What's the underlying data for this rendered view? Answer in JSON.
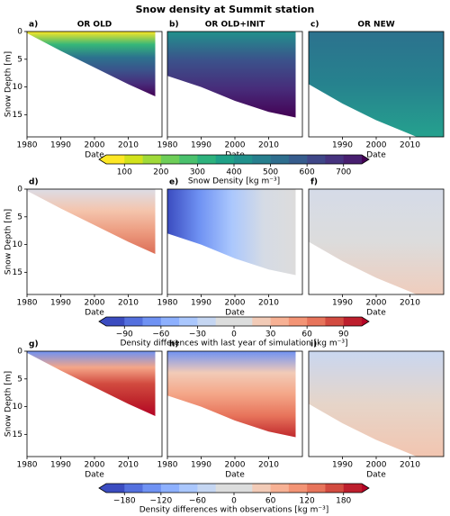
{
  "title": "Snow density at Summit station",
  "chart_data": [
    {
      "type": "contour",
      "label": "a)",
      "title": "OR OLD",
      "xlabel": "Date",
      "ylabel": "Snow Depth [m]",
      "xlim": [
        1980,
        2020
      ],
      "ylim": [
        19,
        0
      ],
      "xticks": [
        1980,
        1990,
        2000,
        2010
      ],
      "yticks": [
        0,
        5,
        10,
        15
      ],
      "x": [
        1980,
        1990,
        2000,
        2010,
        2018
      ],
      "depth": [
        0.3,
        3.5,
        6.5,
        9.5,
        11.7
      ],
      "gradient": "vertical",
      "colors": [
        "#fde725",
        "#35b779",
        "#2c728e",
        "#3b528b",
        "#472d7b",
        "#440154"
      ]
    },
    {
      "type": "contour",
      "label": "b)",
      "title": "OR OLD+INIT",
      "xlabel": "Date",
      "xlim": [
        1980,
        2020
      ],
      "ylim": [
        19,
        0
      ],
      "xticks": [
        1980,
        1990,
        2000,
        2010
      ],
      "x": [
        1980,
        1990,
        2000,
        2010,
        2018
      ],
      "depth": [
        8,
        10,
        12.5,
        14.5,
        15.5
      ],
      "gradient": "vertical",
      "colors": [
        "#21918c",
        "#3b528b",
        "#472c7a",
        "#440154"
      ]
    },
    {
      "type": "contour",
      "label": "c)",
      "title": "OR NEW",
      "xlabel": "Date",
      "xlim": [
        1980,
        2020
      ],
      "ylim": [
        19,
        0
      ],
      "xticks": [
        1990,
        2000,
        2010
      ],
      "x": [
        1980,
        1990,
        2000,
        2010,
        2012,
        2020
      ],
      "depth": [
        9.5,
        13,
        16,
        18.5,
        19,
        19
      ],
      "gradient": "vertical",
      "colors": [
        "#2c728e",
        "#26828e",
        "#25a18e"
      ]
    },
    {
      "type": "colorbar",
      "label": "Snow Density [kg m⁻³]",
      "lim": [
        50,
        750
      ],
      "ticks": [
        100,
        200,
        300,
        400,
        500,
        600,
        700
      ],
      "colors": [
        "#fde725",
        "#d2e21b",
        "#a0da39",
        "#6ece58",
        "#4ac16d",
        "#2db27d",
        "#1fa187",
        "#21918c",
        "#277f8e",
        "#2e6e8e",
        "#365c8d",
        "#3f4788",
        "#46337f",
        "#481f70"
      ],
      "extend_colors": [
        "#fde725",
        "#440154"
      ]
    },
    {
      "type": "contour",
      "label": "d)",
      "xlabel": "Date",
      "ylabel": "Snow Depth [m]",
      "xlim": [
        1980,
        2020
      ],
      "ylim": [
        19,
        0
      ],
      "xticks": [
        1980,
        1990,
        2000,
        2010
      ],
      "yticks": [
        0,
        5,
        10,
        15
      ],
      "x": [
        1980,
        1990,
        2000,
        2010,
        2018
      ],
      "depth": [
        0.3,
        3.5,
        6.5,
        9.5,
        11.7
      ],
      "gradient": "vertical",
      "colors": [
        "#dcdde6",
        "#f4c4ac",
        "#ec9a7e",
        "#dc6e57"
      ]
    },
    {
      "type": "contour",
      "label": "e)",
      "xlabel": "Date",
      "xlim": [
        1980,
        2020
      ],
      "ylim": [
        19,
        0
      ],
      "xticks": [
        1980,
        1990,
        2000,
        2010
      ],
      "x": [
        1980,
        1990,
        2000,
        2010,
        2018
      ],
      "depth": [
        8,
        10,
        12.5,
        14.5,
        15.5
      ],
      "gradient": "horizontal",
      "colors": [
        "#3b4cc0",
        "#6f92f3",
        "#aac7fd",
        "#d5dbe5",
        "#dddcdc"
      ]
    },
    {
      "type": "contour",
      "label": "f)",
      "xlabel": "Date",
      "xlim": [
        1980,
        2020
      ],
      "ylim": [
        19,
        0
      ],
      "xticks": [
        1990,
        2000,
        2010
      ],
      "x": [
        1980,
        1990,
        2000,
        2010,
        2012,
        2020
      ],
      "depth": [
        9.5,
        13,
        16,
        18.5,
        19,
        19
      ],
      "gradient": "vertical",
      "colors": [
        "#d5dbe8",
        "#dcdcdc",
        "#efcdbd"
      ]
    },
    {
      "type": "colorbar",
      "label": "Density differences with last year of simulation [kg m⁻³]",
      "lim": [
        -105,
        105
      ],
      "ticks": [
        {
          "value": -90,
          "label": "−90"
        },
        {
          "value": -60,
          "label": "−60"
        },
        {
          "value": -30,
          "label": "−30"
        },
        0,
        30,
        60,
        90
      ],
      "colors": [
        "#3b4cc0",
        "#5470de",
        "#6f92f3",
        "#8db0fe",
        "#aac7fd",
        "#c5d6f2",
        "#dcdddd",
        "#dcdddd",
        "#f2cbb7",
        "#f7b194",
        "#f39475",
        "#e7745b",
        "#d24b40",
        "#bd1f2d"
      ],
      "extend_colors": [
        "#3b4cc0",
        "#b40426"
      ]
    },
    {
      "type": "contour",
      "label": "g)",
      "xlabel": "Date",
      "ylabel": "Snow Depth [m]",
      "xlim": [
        1980,
        2020
      ],
      "ylim": [
        19,
        0
      ],
      "xticks": [
        1980,
        1990,
        2000,
        2010
      ],
      "yticks": [
        0,
        5,
        10,
        15
      ],
      "x": [
        1980,
        1990,
        2000,
        2010,
        2018
      ],
      "depth": [
        0.3,
        3.5,
        6.5,
        9.5,
        11.7
      ],
      "gradient": "vertical",
      "colors": [
        "#6f92f3",
        "#f4a688",
        "#d24b40",
        "#c0282d",
        "#b40426"
      ]
    },
    {
      "type": "contour",
      "label": "h)",
      "xlabel": "Date",
      "xlim": [
        1980,
        2020
      ],
      "ylim": [
        19,
        0
      ],
      "xticks": [
        1980,
        1990,
        2000,
        2010
      ],
      "x": [
        1980,
        1990,
        2000,
        2010,
        2018
      ],
      "depth": [
        8,
        10,
        12.5,
        14.5,
        15.5
      ],
      "gradient": "vertical",
      "colors": [
        "#6f92f3",
        "#f2cbb7",
        "#f4a688",
        "#e7745b",
        "#c0282d"
      ]
    },
    {
      "type": "contour",
      "label": "i)",
      "xlabel": "Date",
      "xlim": [
        1980,
        2020
      ],
      "ylim": [
        19,
        0
      ],
      "xticks": [
        1990,
        2000,
        2010
      ],
      "x": [
        1980,
        1990,
        2000,
        2010,
        2012,
        2020
      ],
      "depth": [
        9.5,
        13,
        16,
        18.5,
        19,
        19
      ],
      "gradient": "vertical",
      "colors": [
        "#c9d7f0",
        "#e6d5c9",
        "#f2c5b0"
      ]
    },
    {
      "type": "colorbar",
      "label": "Density differences with observations [kg m⁻³]",
      "lim": [
        -210,
        210
      ],
      "ticks": [
        {
          "value": -180,
          "label": "−180"
        },
        {
          "value": -120,
          "label": "−120"
        },
        {
          "value": -60,
          "label": "−60"
        },
        0,
        60,
        120,
        180
      ],
      "colors": [
        "#3b4cc0",
        "#5470de",
        "#6f92f3",
        "#8db0fe",
        "#aac7fd",
        "#c5d6f2",
        "#dcdddd",
        "#dcdddd",
        "#f2cbb7",
        "#f7b194",
        "#f39475",
        "#e7745b",
        "#d24b40",
        "#bd1f2d"
      ],
      "extend_colors": [
        "#3b4cc0",
        "#b40426"
      ]
    }
  ]
}
